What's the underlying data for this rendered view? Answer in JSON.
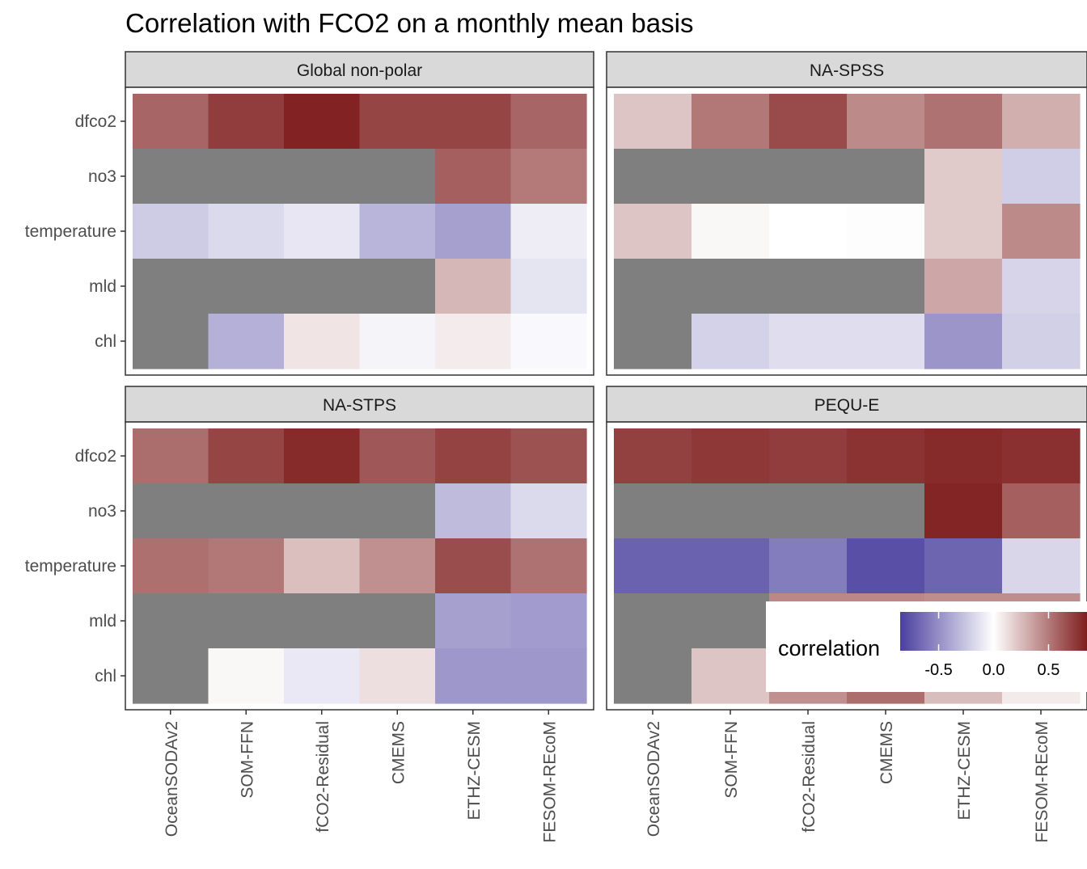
{
  "chart_data": {
    "type": "heatmap",
    "title": "Correlation with FCO2 on a monthly mean basis",
    "x_categories": [
      "OceanSODAv2",
      "SOM-FFN",
      "fCO2-Residual",
      "CMEMS",
      "ETHZ-CESM",
      "FESOM-REcoM"
    ],
    "y_categories": [
      "dfco2",
      "no3",
      "temperature",
      "mld",
      "chl"
    ],
    "missing_color": "#7f7f7f",
    "color_scale": {
      "low": "#4a3f9e",
      "mid": "#ffffff",
      "high": "#7f1d1d",
      "limits": [
        -0.85,
        0.85
      ]
    },
    "legend": {
      "title": "correlation",
      "ticks": [
        -0.5,
        0.0,
        0.5
      ],
      "tick_labels": [
        "-0.5",
        "0.0",
        "0.5"
      ],
      "placement": "bottom-right, overlapping"
    },
    "panels": [
      {
        "name": "Global non-polar",
        "values": [
          [
            0.58,
            0.73,
            0.83,
            0.7,
            0.7,
            0.58
          ],
          [
            null,
            null,
            null,
            null,
            0.6,
            0.5
          ],
          [
            -0.23,
            -0.17,
            -0.11,
            -0.33,
            -0.42,
            -0.08
          ],
          [
            null,
            null,
            null,
            null,
            0.27,
            -0.12
          ],
          [
            null,
            -0.35,
            0.1,
            -0.05,
            0.07,
            -0.03
          ]
        ]
      },
      {
        "name": "NA-SPSS",
        "values": [
          [
            0.22,
            0.51,
            0.68,
            0.44,
            0.53,
            0.3
          ],
          [
            null,
            null,
            null,
            null,
            0.2,
            -0.22
          ],
          [
            0.22,
            0.03,
            0.0,
            -0.01,
            0.2,
            0.44
          ],
          [
            null,
            null,
            null,
            null,
            0.33,
            -0.19
          ],
          [
            null,
            -0.2,
            -0.15,
            -0.15,
            -0.47,
            -0.21
          ]
        ]
      },
      {
        "name": "NA-STPS",
        "values": [
          [
            0.55,
            0.7,
            0.8,
            0.63,
            0.71,
            0.65
          ],
          [
            null,
            null,
            null,
            null,
            -0.3,
            -0.17
          ],
          [
            0.54,
            0.51,
            0.24,
            0.42,
            0.67,
            0.53
          ],
          [
            null,
            null,
            null,
            null,
            -0.42,
            -0.44
          ],
          [
            null,
            0.03,
            -0.1,
            0.12,
            -0.46,
            -0.46
          ]
        ]
      },
      {
        "name": "PEQU-E",
        "values": [
          [
            0.72,
            0.75,
            0.73,
            0.77,
            0.8,
            0.78
          ],
          [
            null,
            null,
            null,
            null,
            0.82,
            0.6
          ],
          [
            -0.7,
            -0.7,
            -0.58,
            -0.78,
            -0.68,
            -0.18
          ],
          [
            null,
            null,
            0.45,
            0.45,
            0.43,
            0.43
          ],
          [
            null,
            0.22,
            0.42,
            0.55,
            0.25,
            0.08
          ]
        ]
      }
    ]
  }
}
